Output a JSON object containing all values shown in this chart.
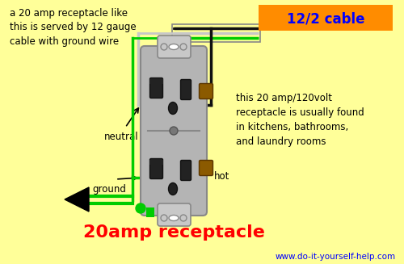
{
  "bg_color": "#FFFF99",
  "title": "20amp receptacle",
  "title_color": "#FF0000",
  "title_fontsize": 16,
  "cable_label": "12/2 cable",
  "cable_label_color": "#0000FF",
  "cable_box_color": "#FF8C00",
  "top_left_text": "a 20 amp receptacle like\nthis is served by 12 gauge\ncable with ground wire",
  "right_text": "this 20 amp/120volt\nreceptacle is usually found\nin kitchens, bathrooms,\nand laundry rooms",
  "website": "www.do-it-yourself-help.com",
  "website_color": "#0000FF",
  "green_wire_color": "#00CC00",
  "white_wire_color": "#C8C8C8",
  "black_wire_color": "#111111",
  "hot_screw_color": "#8B5A00",
  "outlet_body_color": "#B4B4B4",
  "outlet_tab_color": "#C8C8C8",
  "outlet_edge_color": "#888888",
  "slot_color": "#222222",
  "center_dot_color": "#555555",
  "neutral_label": "neutral",
  "ground_label": "ground",
  "hot_label": "hot"
}
